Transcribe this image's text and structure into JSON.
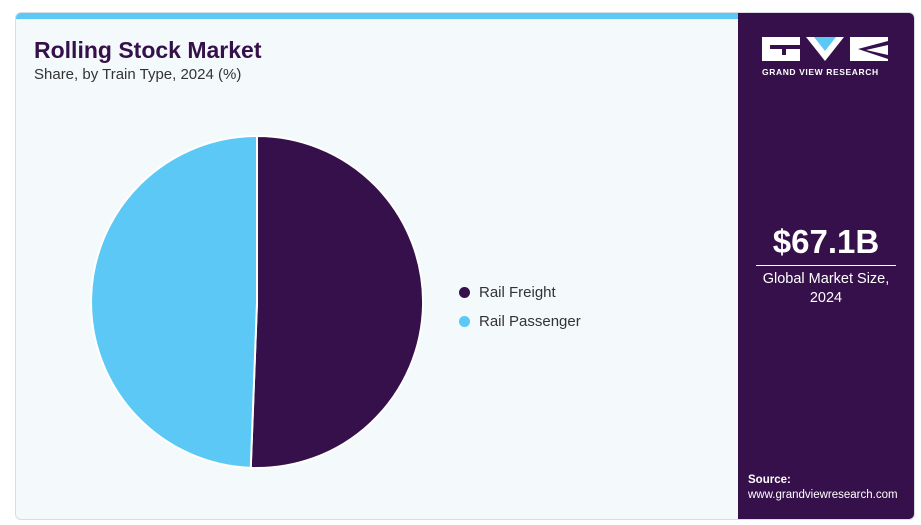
{
  "header": {
    "title": "Rolling Stock Market",
    "subtitle": "Share, by Train Type, 2024 (%)"
  },
  "chart_data": {
    "type": "pie",
    "categories": [
      "Rail Freight",
      "Rail Passenger"
    ],
    "values": [
      50.6,
      49.4
    ],
    "colors": [
      "#36104a",
      "#5bc8f5"
    ],
    "legend": "right"
  },
  "sidebar": {
    "brand": "GRAND VIEW RESEARCH",
    "market_size_value": "$67.1B",
    "market_size_label": "Global Market Size, 2024",
    "source_label": "Source:",
    "source_url": "www.grandviewresearch.com",
    "accent_color": "#36104a"
  }
}
